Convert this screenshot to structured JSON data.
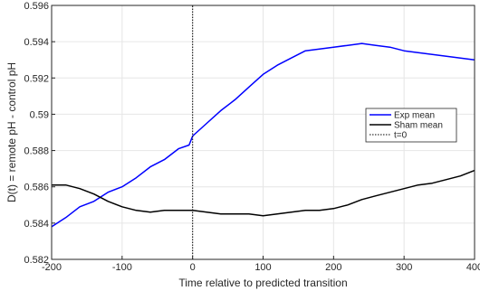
{
  "chart_data": {
    "type": "line",
    "title": "",
    "xlabel": "Time relative to predicted transition",
    "ylabel": "D(t) = remote pH - control pH",
    "xlim": [
      -200,
      400
    ],
    "ylim": [
      0.582,
      0.596
    ],
    "x_ticks": [
      -200,
      -100,
      0,
      100,
      200,
      300,
      400
    ],
    "x_tick_labels": [
      "-200",
      "-100",
      "0",
      "100",
      "200",
      "300",
      "400"
    ],
    "y_ticks": [
      0.582,
      0.584,
      0.586,
      0.588,
      0.59,
      0.592,
      0.594,
      0.596
    ],
    "y_tick_labels": [
      "0.582",
      "0.584",
      "0.586",
      "0.588",
      "0.59",
      "0.592",
      "0.594",
      "0.596"
    ],
    "grid": true,
    "legend_position": "right",
    "series": [
      {
        "name": "Exp mean",
        "color": "#0000ff",
        "style": "solid",
        "x": [
          -200,
          -180,
          -160,
          -140,
          -120,
          -100,
          -80,
          -60,
          -40,
          -20,
          -5,
          0,
          20,
          40,
          60,
          80,
          100,
          120,
          140,
          160,
          180,
          200,
          220,
          240,
          260,
          280,
          300,
          320,
          340,
          360,
          380,
          400
        ],
        "y": [
          0.5838,
          0.5843,
          0.5849,
          0.5852,
          0.5857,
          0.586,
          0.5865,
          0.5871,
          0.5875,
          0.5881,
          0.5883,
          0.5888,
          0.5895,
          0.5902,
          0.5908,
          0.5915,
          0.5922,
          0.5927,
          0.5931,
          0.5935,
          0.5936,
          0.5937,
          0.5938,
          0.5939,
          0.5938,
          0.5937,
          0.5935,
          0.5934,
          0.5933,
          0.5932,
          0.5931,
          0.593
        ]
      },
      {
        "name": "Sham mean",
        "color": "#000000",
        "style": "solid",
        "x": [
          -200,
          -180,
          -160,
          -140,
          -120,
          -100,
          -80,
          -60,
          -40,
          -20,
          0,
          20,
          40,
          60,
          80,
          100,
          120,
          140,
          160,
          180,
          200,
          220,
          240,
          260,
          280,
          300,
          320,
          340,
          360,
          380,
          400
        ],
        "y": [
          0.5861,
          0.5861,
          0.5859,
          0.5856,
          0.5852,
          0.5849,
          0.5847,
          0.5846,
          0.5847,
          0.5847,
          0.5847,
          0.5846,
          0.5845,
          0.5845,
          0.5845,
          0.5844,
          0.5845,
          0.5846,
          0.5847,
          0.5847,
          0.5848,
          0.585,
          0.5853,
          0.5855,
          0.5857,
          0.5859,
          0.5861,
          0.5862,
          0.5864,
          0.5866,
          0.5869
        ]
      },
      {
        "name": "t=0",
        "color": "#000000",
        "style": "dotted",
        "x": [
          0,
          0
        ],
        "y": [
          0.582,
          0.596
        ]
      }
    ]
  }
}
